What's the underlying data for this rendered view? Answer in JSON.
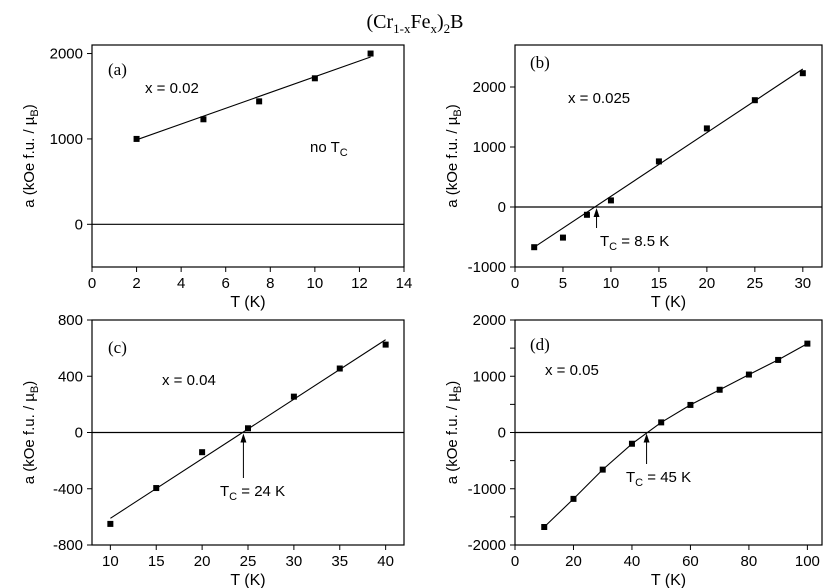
{
  "figure_title": {
    "open": "(Cr",
    "sub1": "1-x",
    "mid": "Fe",
    "sub2": "x",
    "close": ")",
    "sub3": "2",
    "end": "B"
  },
  "panel_text": {
    "tc_prefix": "T",
    "tc_sub": "C",
    "no_tc_prefix": "no T",
    "no_tc_sub": "C"
  },
  "chart_data": [
    {
      "type": "scatter",
      "panel_label": "(a)",
      "composition": "x = 0.02",
      "annotation": "no",
      "tc": "",
      "xlabel": "T (K)",
      "ylabel": "a (kOe f.u. / µB)",
      "xlim": [
        0,
        14
      ],
      "ylim": [
        -500,
        2100
      ],
      "xticks": [
        0,
        2,
        4,
        6,
        8,
        10,
        12,
        14
      ],
      "yticks": [
        0,
        1000,
        2000
      ],
      "x": [
        2,
        5,
        7.5,
        10,
        12.5
      ],
      "y": [
        1000,
        1230,
        1440,
        1710,
        2000
      ],
      "fit": [
        [
          2,
          990
        ],
        [
          12.5,
          1960
        ]
      ],
      "zero_line": true
    },
    {
      "type": "scatter",
      "panel_label": "(b)",
      "composition": "x = 0.025",
      "annotation": "Tc",
      "tc": "= 8.5 K",
      "tc_x": 8.5,
      "xlabel": "T (K)",
      "ylabel": "a (kOe f.u. / µB)",
      "xlim": [
        0,
        32
      ],
      "ylim": [
        -1000,
        2700
      ],
      "xticks": [
        0,
        5,
        10,
        15,
        20,
        25,
        30
      ],
      "yticks": [
        -1000,
        0,
        1000,
        2000
      ],
      "x": [
        2,
        5,
        7.5,
        10,
        15,
        20,
        25,
        30
      ],
      "y": [
        -670,
        -510,
        -130,
        110,
        760,
        1310,
        1780,
        2230
      ],
      "fit": [
        [
          2,
          -670
        ],
        [
          30,
          2300
        ]
      ],
      "zero_line": true
    },
    {
      "type": "scatter",
      "panel_label": "(c)",
      "composition": "x = 0.04",
      "annotation": "Tc",
      "tc": "= 24 K",
      "tc_x": 24.5,
      "xlabel": "T (K)",
      "ylabel": "a (kOe f.u. / µB)",
      "xlim": [
        8,
        42
      ],
      "ylim": [
        -800,
        800
      ],
      "xticks": [
        10,
        15,
        20,
        25,
        30,
        35,
        40
      ],
      "yticks": [
        -800,
        -400,
        0,
        400,
        800
      ],
      "x": [
        10,
        15,
        20,
        25,
        30,
        35,
        40
      ],
      "y": [
        -650,
        -395,
        -140,
        30,
        255,
        455,
        625
      ],
      "fit": [
        [
          10,
          -610
        ],
        [
          40,
          660
        ]
      ],
      "zero_line": true
    },
    {
      "type": "scatter",
      "panel_label": "(d)",
      "composition": "x = 0.05",
      "annotation": "Tc",
      "tc": "= 45 K",
      "tc_x": 45,
      "xlabel": "T (K)",
      "ylabel": "a (kOe f.u. / µB)",
      "xlim": [
        0,
        105
      ],
      "ylim": [
        -2000,
        2000
      ],
      "xticks": [
        0,
        20,
        40,
        60,
        80,
        100
      ],
      "yticks": [
        -2000,
        -1500,
        -1000,
        -500,
        0,
        500,
        1000,
        1500,
        2000
      ],
      "x": [
        10,
        20,
        30,
        40,
        50,
        60,
        70,
        80,
        90,
        100
      ],
      "y": [
        -1680,
        -1180,
        -660,
        -200,
        180,
        490,
        760,
        1030,
        1290,
        1580
      ],
      "fit": [
        [
          10,
          -1680
        ],
        [
          20,
          -1180
        ],
        [
          30,
          -660
        ],
        [
          40,
          -200
        ],
        [
          50,
          180
        ],
        [
          60,
          490
        ],
        [
          70,
          760
        ],
        [
          80,
          1030
        ],
        [
          90,
          1290
        ],
        [
          100,
          1580
        ]
      ],
      "zero_line": true
    }
  ]
}
